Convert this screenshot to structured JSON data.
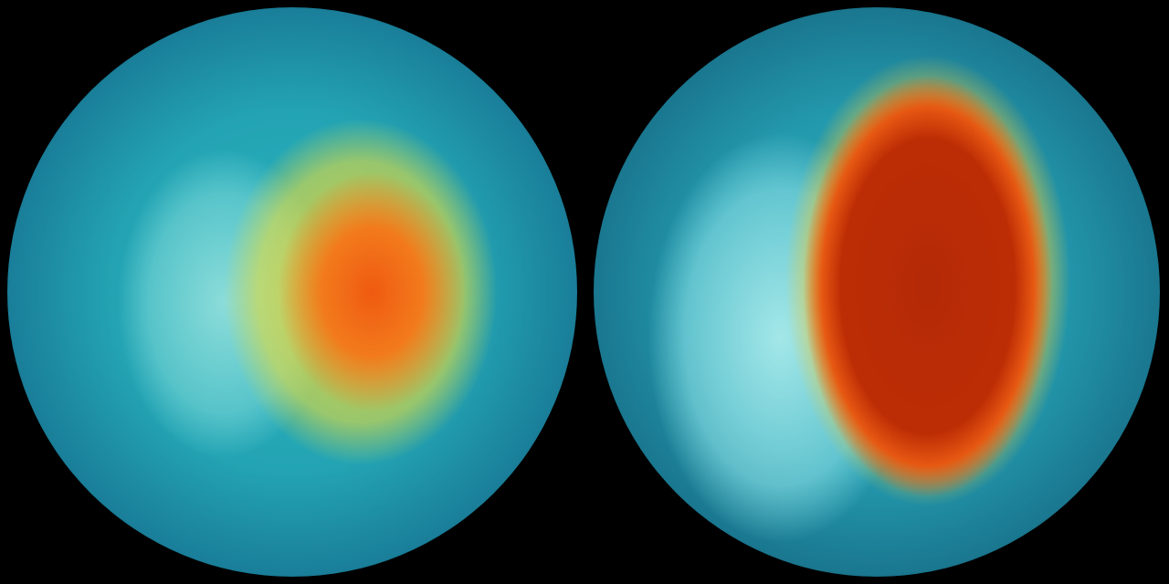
{
  "image": {
    "left_globe": {
      "colors": {
        "core": "#f05a10",
        "ring": "#f0c828",
        "ocean": "#23a3b3",
        "edge": "#0b2f4a"
      }
    },
    "right_globe": {
      "colors": {
        "core": "#b42a06",
        "ring": "#f5d228",
        "land": "#aaebeb",
        "ocean": "#2399ad",
        "edge": "#0a2c42"
      }
    },
    "background": "#000000"
  }
}
